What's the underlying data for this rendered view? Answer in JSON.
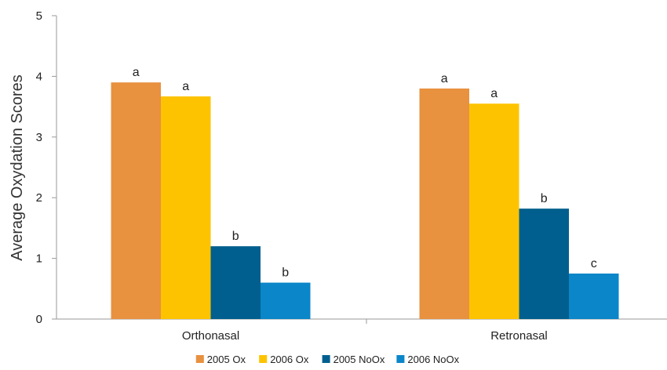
{
  "chart_data": {
    "type": "bar",
    "title": "",
    "xlabel": "",
    "ylabel": "Average Oxydation Scores",
    "ylim": [
      0,
      5
    ],
    "yticks": [
      0,
      1,
      2,
      3,
      4,
      5
    ],
    "grid": false,
    "legend_position": "bottom",
    "categories": [
      "Orthonasal",
      "Retronasal"
    ],
    "series": [
      {
        "name": "2005 Ox",
        "color": "#E8913F",
        "values": [
          3.9,
          3.8
        ],
        "labels": [
          "a",
          "a"
        ]
      },
      {
        "name": "2006 Ox",
        "color": "#FDC300",
        "values": [
          3.67,
          3.55
        ],
        "labels": [
          "a",
          "a"
        ]
      },
      {
        "name": "2005 NoOx",
        "color": "#005F8E",
        "values": [
          1.2,
          1.82
        ],
        "labels": [
          "b",
          "b"
        ]
      },
      {
        "name": "2006 NoOx",
        "color": "#0A86C9",
        "values": [
          0.6,
          0.75
        ],
        "labels": [
          "b",
          "c"
        ]
      }
    ]
  }
}
